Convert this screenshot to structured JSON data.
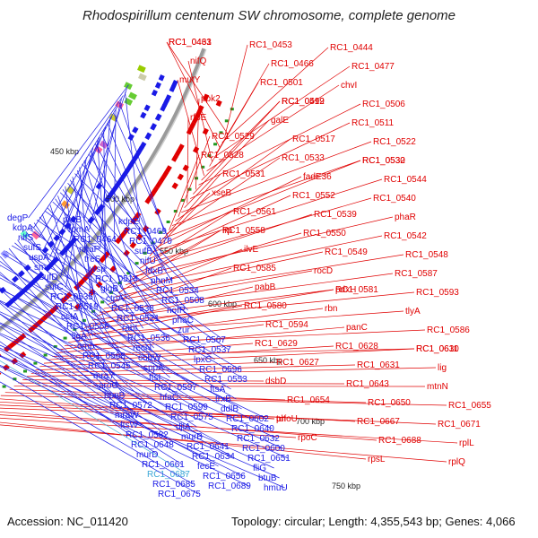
{
  "title": "Rhodospirillum centenum SW chromosome, complete genome",
  "footer": {
    "accession": "Accession: NC_011420",
    "summary": "Topology: circular; Length: 4,355,543 bp; Genes: 4,066"
  },
  "colors": {
    "forward": "#e00000",
    "reverse": "#1a1ae6",
    "highlight": "#39a6d6",
    "backbone": "#9a9a9a",
    "tick": "#229922"
  },
  "scale_labels": [
    "450 kbp",
    "500 kbp",
    "550 kbp",
    "600 kbp",
    "650 kbp",
    "700 kbp",
    "750 kbp"
  ],
  "forward_genes": [
    "RC1_0431",
    "RC1_0453",
    "RC1_0444",
    "RC1_0463",
    "RC1_0466",
    "RC1_0477",
    "nifQ",
    "RC1_0501",
    "chvI",
    "mutY",
    "RC1_0499",
    "RC1_0506",
    "ppk2",
    "RC1_0512",
    "RC1_0511",
    "rfbE",
    "galE",
    "RC1_0522",
    "RC1_0529",
    "RC1_0517",
    "RC1_0530",
    "RC1_0528",
    "RC1_0533",
    "RC1_0532",
    "RC1_0531",
    "fadE36",
    "RC1_0544",
    "xseB",
    "RC1_0552",
    "RC1_0540",
    "RC1_0561",
    "RC1_0539",
    "phaR",
    "lrp",
    "RC1_0550",
    "RC1_0542",
    "RC1_0558",
    "RC1_0549",
    "RC1_0548",
    "ilvE",
    "rocD",
    "RC1_0587",
    "RC1_0585",
    "pdxH",
    "RC1_0593",
    "pabB",
    "RC1_0581",
    "tlyA",
    "RC1_0580",
    "rbn",
    "RC1_0586",
    "RC1_0594",
    "panC",
    "RC1_0611",
    "RC1_0629",
    "RC1_0628",
    "RC1_0630",
    "RC1_0627",
    "RC1_0631",
    "lig",
    "dsbD",
    "RC1_0643",
    "mtnN",
    "RC1_0654",
    "RC1_0650",
    "RC1_0655",
    "phoU",
    "RC1_0667",
    "RC1_0671",
    "tuf",
    "RC1_0688",
    "rplL",
    "rpoC",
    "rpsL",
    "rplQ"
  ],
  "reverse_genes": [
    "degP",
    "proB",
    "kdpE",
    "kdpA",
    "rpmA",
    "RC1_0469",
    "nifS",
    "RC1_0464",
    "RC1_0470",
    "sufS",
    "nhaP",
    "sufB",
    "uspA",
    "treS",
    "nifU",
    "smc",
    "wsp",
    "fdxB",
    "sufD",
    "RC1_0514",
    "phnM",
    "sufC",
    "glgB",
    "RC1_0534",
    "RC1_0535",
    "ctpA",
    "RC1_0508",
    "RC1_0519",
    "RC1_0538",
    "noIR",
    "cstA",
    "RC1_0521",
    "phaC",
    "RC1_0566",
    "rabI",
    "zur",
    "ligA",
    "RC1_0536",
    "RC1_0567",
    "omp",
    "recN",
    "RC1_0537",
    "RC1_0568",
    "cobW",
    "lpxC",
    "RC1_0545",
    "sppA",
    "RC1_0596",
    "mraY",
    "ftsI",
    "RC1_0553",
    "aroC",
    "RC1_0597",
    "ftsA",
    "bpnB",
    "hfaC",
    "trxB",
    "RC1_0572",
    "RC1_0599",
    "ddlB",
    "mraW",
    "RC1_0575",
    "RC1_0602",
    "ftsW",
    "djlA",
    "RC1_0640",
    "RC1_0582",
    "murB",
    "RC1_0632",
    "RC1_0648",
    "RC1_0641",
    "RC1_0600",
    "murD",
    "RC1_0634",
    "RC1_0651",
    "RC1_0661",
    "fecE",
    "fliG",
    "RC1_0687",
    "RC1_0656",
    "btuB",
    "RC1_0685",
    "RC1_0689",
    "hmuU",
    "RC1_0675"
  ],
  "highlight_gene": "RC1_0687"
}
